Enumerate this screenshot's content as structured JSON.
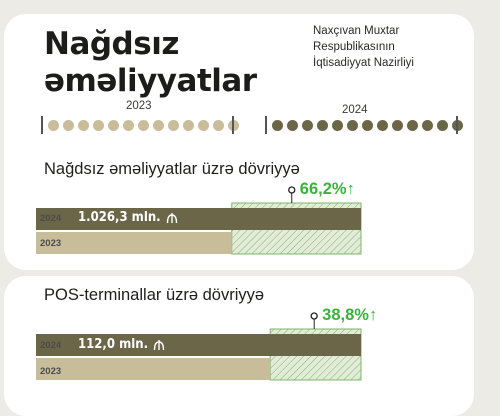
{
  "header": {
    "title": "Nağdsız əməliyyatlar",
    "ministry": [
      "Naxçıvan Muxtar",
      "Respublikasının",
      "İqtisadiyyat Nazirliyi"
    ]
  },
  "timeline": {
    "left_year": "2023",
    "right_year": "2024",
    "left_dots": 13,
    "right_dots": 13,
    "left_color": "#c8bd9a",
    "right_color": "#6b6647"
  },
  "chart_data": [
    {
      "type": "bar",
      "title": "Nağdsız əməliyyatlar üzrə dövriyyə",
      "categories": [
        "2024",
        "2023"
      ],
      "series": [
        {
          "values": [
            1026.3,
            618.2
          ]
        }
      ],
      "value_label_2024": "1.026,3 mln.",
      "growth": "66,2%",
      "growth_arrow": "↑",
      "xlim": [
        0,
        1026.3
      ]
    },
    {
      "type": "bar",
      "title": "POS-terminallar üzrə dövriyyə",
      "categories": [
        "2024",
        "2023"
      ],
      "series": [
        {
          "values": [
            112.0,
            80.7
          ]
        }
      ],
      "value_label_2024": "112,0 mln.",
      "growth": "38,8%",
      "growth_arrow": "↑",
      "xlim": [
        0,
        112.0
      ]
    }
  ],
  "colors": {
    "bar_2024": "#6b6647",
    "bar_2023": "#c8bd9a",
    "growth_fill": "#e3ecd8",
    "growth_stroke": "#7fb56a",
    "growth_text": "#3bb33b"
  }
}
